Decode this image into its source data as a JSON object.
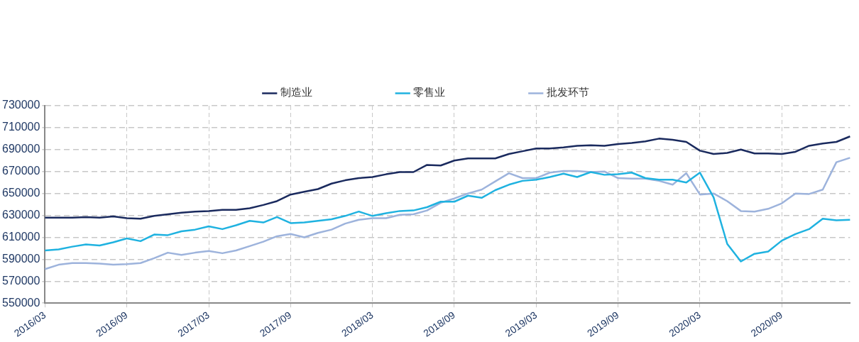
{
  "chart_data": {
    "type": "line",
    "categories": [
      "2016/03",
      null,
      null,
      null,
      null,
      null,
      "2016/09",
      null,
      null,
      null,
      null,
      null,
      "2017/03",
      null,
      null,
      null,
      null,
      null,
      "2017/09",
      null,
      null,
      null,
      null,
      null,
      "2018/03",
      null,
      null,
      null,
      null,
      null,
      "2018/09",
      null,
      null,
      null,
      null,
      null,
      "2019/03",
      null,
      null,
      null,
      null,
      null,
      "2019/09",
      null,
      null,
      null,
      null,
      null,
      "2020/03",
      null,
      null,
      null,
      null,
      null,
      "2020/09",
      null,
      null,
      null,
      null,
      null
    ],
    "series": [
      {
        "name": "制造业",
        "color": "#1a2a5e",
        "values": [
          628000,
          628000,
          628000,
          628500,
          628000,
          629000,
          627500,
          627000,
          629500,
          631000,
          632500,
          633500,
          634000,
          635000,
          635000,
          636500,
          639500,
          643000,
          649000,
          651500,
          654000,
          659000,
          662000,
          664000,
          665000,
          667500,
          669500,
          669500,
          676000,
          675500,
          680000,
          682000,
          682000,
          682000,
          686000,
          688500,
          691000,
          691000,
          692000,
          693500,
          694000,
          693500,
          695000,
          696000,
          697500,
          700000,
          699000,
          697000,
          689000,
          686000,
          687000,
          690000,
          686500,
          686500,
          686000,
          688000,
          693500,
          695500,
          697000,
          702000
        ]
      },
      {
        "name": "零售业",
        "color": "#1fb2e0",
        "values": [
          598000,
          599000,
          601500,
          603500,
          602500,
          605500,
          609000,
          606500,
          612500,
          612000,
          615500,
          617000,
          620000,
          617500,
          621000,
          625000,
          623500,
          628500,
          623000,
          623500,
          625000,
          626500,
          629500,
          633500,
          629500,
          632000,
          634000,
          634500,
          637500,
          642500,
          642500,
          648000,
          646000,
          653000,
          658000,
          661500,
          662500,
          665000,
          668000,
          665000,
          669500,
          667000,
          667500,
          669000,
          664000,
          662500,
          662500,
          660000,
          669000,
          646500,
          604000,
          588000,
          595000,
          597000,
          607000,
          613000,
          617500,
          627000,
          625500,
          626000
        ]
      },
      {
        "name": "批发环节",
        "color": "#9db3dc",
        "values": [
          581000,
          585000,
          586500,
          586500,
          586000,
          585000,
          585500,
          586500,
          591000,
          596000,
          594000,
          596000,
          597500,
          595500,
          598000,
          602000,
          606000,
          611000,
          613000,
          610000,
          614000,
          617000,
          622500,
          626000,
          627500,
          627500,
          630500,
          631000,
          634500,
          641500,
          645500,
          650000,
          653500,
          661000,
          668500,
          664000,
          664000,
          669000,
          670500,
          670500,
          669500,
          670000,
          664000,
          663500,
          663500,
          661500,
          658000,
          668500,
          649000,
          650000,
          643000,
          634000,
          633500,
          636000,
          641000,
          650000,
          649500,
          653500,
          678500,
          682500
        ]
      }
    ],
    "ylim": [
      550000,
      730000
    ],
    "yticks": [
      550000,
      570000,
      590000,
      610000,
      630000,
      650000,
      670000,
      690000,
      710000,
      730000
    ],
    "grid": true,
    "legend": "top",
    "marker": "none",
    "line_style": "solid"
  }
}
